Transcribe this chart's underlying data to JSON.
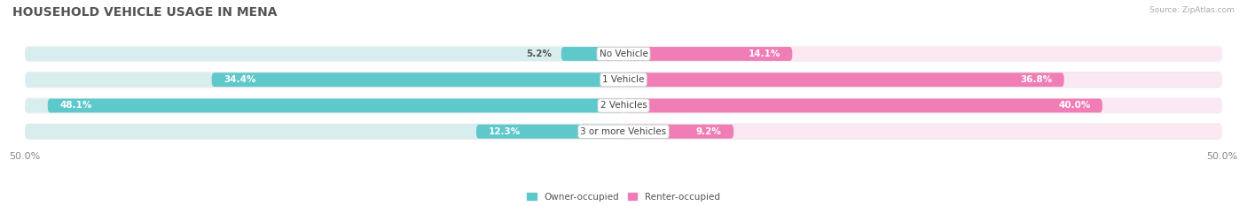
{
  "title": "HOUSEHOLD VEHICLE USAGE IN MENA",
  "source": "Source: ZipAtlas.com",
  "categories": [
    "No Vehicle",
    "1 Vehicle",
    "2 Vehicles",
    "3 or more Vehicles"
  ],
  "owner_values": [
    5.2,
    34.4,
    48.1,
    12.3
  ],
  "renter_values": [
    14.1,
    36.8,
    40.0,
    9.2
  ],
  "owner_color": "#5ec8cb",
  "renter_color": "#f07db5",
  "owner_light": "#d8eeee",
  "renter_light": "#fce8f3",
  "row_bg_even": "#f2f2f2",
  "row_bg_odd": "#e8e8e8",
  "max_val": 50.0,
  "legend_owner": "Owner-occupied",
  "legend_renter": "Renter-occupied",
  "title_fontsize": 10,
  "label_fontsize": 7.5,
  "value_fontsize": 7.5,
  "tick_fontsize": 8,
  "bar_height": 0.62,
  "fig_width": 14.06,
  "fig_height": 2.33
}
